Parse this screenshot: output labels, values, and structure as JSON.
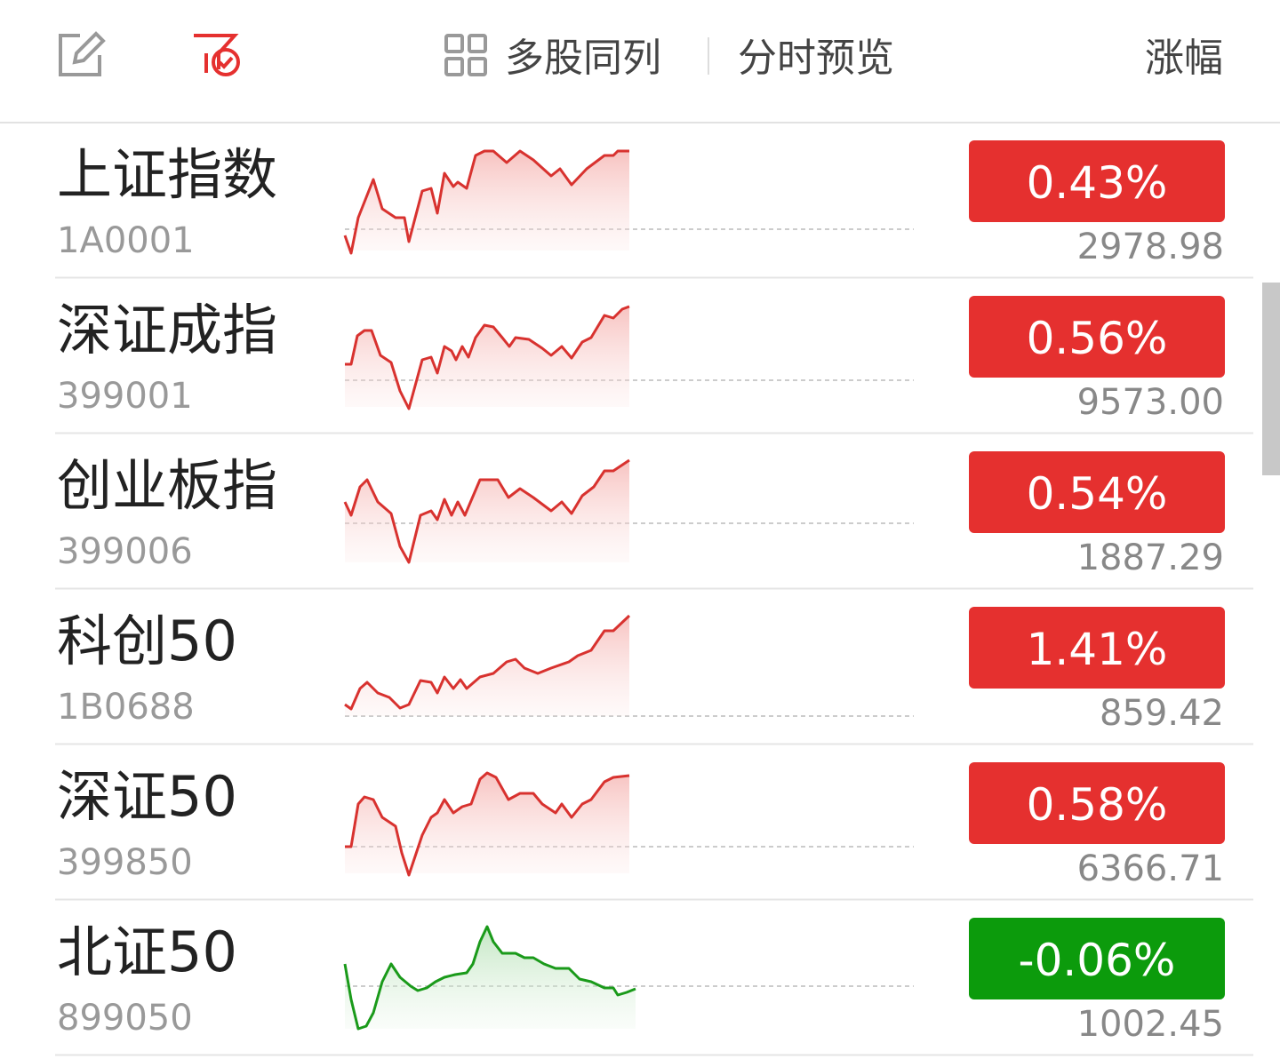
{
  "header": {
    "tabs": [
      "多股同列",
      "分时预览"
    ],
    "sort": "涨幅"
  },
  "rows": [
    {
      "name": "上证指数",
      "code": "1A0001",
      "change": "0.43%",
      "price": "2978.98",
      "color": "#e5302f"
    },
    {
      "name": "深证成指",
      "code": "399001",
      "change": "0.56%",
      "price": "9573.00",
      "color": "#e5302f"
    },
    {
      "name": "创业板指",
      "code": "399006",
      "change": "0.54%",
      "price": "1887.29",
      "color": "#e5302f"
    },
    {
      "name": "科创50",
      "code": "1B0688",
      "change": "1.41%",
      "price": "859.42",
      "color": "#e5302f"
    },
    {
      "name": "深证50",
      "code": "399850",
      "change": "0.58%",
      "price": "6366.71",
      "color": "#e5302f"
    },
    {
      "name": "北证50",
      "code": "899050",
      "change": "-0.06%",
      "price": "1002.45",
      "color": "#0c9b0c"
    }
  ]
}
